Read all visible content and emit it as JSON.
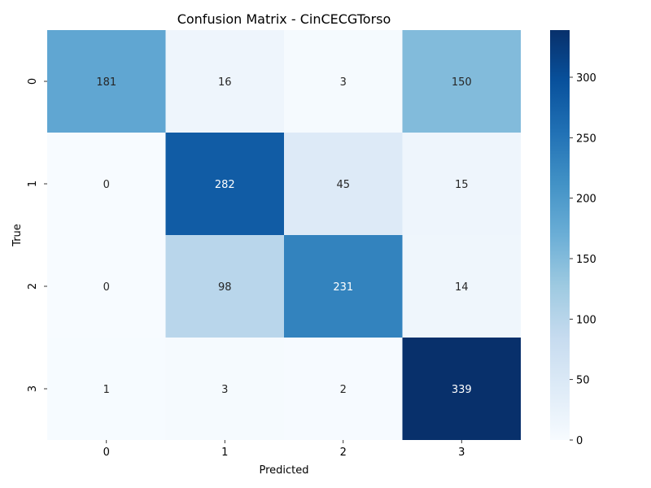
{
  "chart_data": {
    "type": "heatmap",
    "title": "Confusion Matrix - CinCECGTorso",
    "xlabel": "Predicted",
    "ylabel": "True",
    "x_categories": [
      "0",
      "1",
      "2",
      "3"
    ],
    "y_categories": [
      "0",
      "1",
      "2",
      "3"
    ],
    "values": [
      [
        181,
        16,
        3,
        150
      ],
      [
        0,
        282,
        45,
        15
      ],
      [
        0,
        98,
        231,
        14
      ],
      [
        1,
        3,
        2,
        339
      ]
    ],
    "colorbar": {
      "min": 0,
      "max": 339,
      "ticks": [
        "0",
        "50",
        "100",
        "150",
        "200",
        "250",
        "300"
      ],
      "colormap": "Blues"
    },
    "grid": false,
    "legend": "colorbar-right"
  }
}
